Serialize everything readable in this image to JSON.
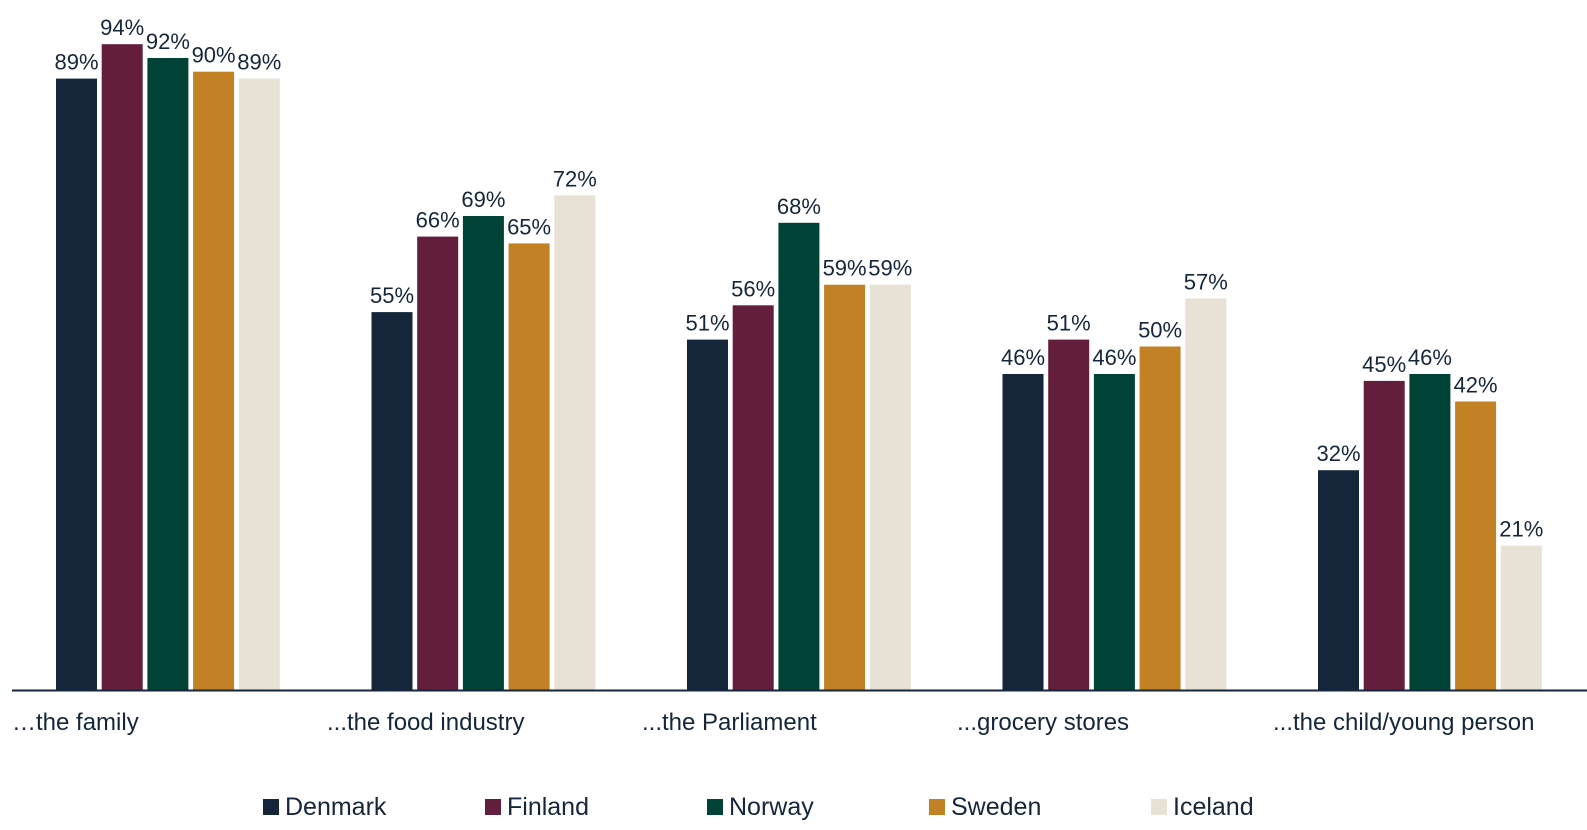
{
  "chart_data": {
    "type": "bar",
    "categories": [
      "…the family",
      "...the food industry",
      "...the Parliament",
      "...grocery stores",
      "...the child/young person"
    ],
    "series": [
      {
        "name": "Denmark",
        "color": "#15263b",
        "values": [
          89,
          55,
          51,
          46,
          32
        ]
      },
      {
        "name": "Finland",
        "color": "#631e3b",
        "values": [
          94,
          66,
          56,
          51,
          45
        ]
      },
      {
        "name": "Norway",
        "color": "#004235",
        "values": [
          92,
          69,
          68,
          46,
          46
        ]
      },
      {
        "name": "Sweden",
        "color": "#c28124",
        "values": [
          90,
          65,
          59,
          50,
          42
        ]
      },
      {
        "name": "Iceland",
        "color": "#e7e1d6",
        "values": [
          89,
          72,
          59,
          57,
          21
        ]
      }
    ],
    "value_suffix": "%",
    "ylim": [
      0,
      100
    ],
    "grid": false,
    "legend_position": "bottom"
  }
}
